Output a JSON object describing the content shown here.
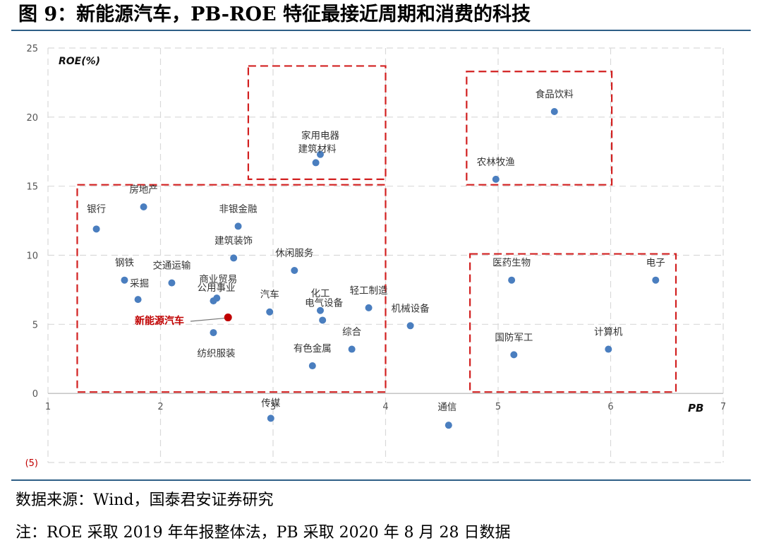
{
  "title": "图 9：新能源汽车，PB-ROE 特征最接近周期和消费的科技",
  "source": "数据来源：Wind，国泰君安证券研究",
  "note": "注：ROE 采取 2019 年年报整体法，PB 采取 2020 年 8 月 28 日数据",
  "colors": {
    "point": "#4a7ebf",
    "highlight": "#c00000",
    "box": "#d22020",
    "rule": "#2e5f86",
    "grid": "#d9d9d9"
  },
  "chart_data": {
    "type": "scatter",
    "xlabel": "PB",
    "ylabel": "ROE(%)",
    "xlim": [
      1,
      7
    ],
    "ylim": [
      -5,
      25
    ],
    "xticks": [
      "1",
      "2",
      "3",
      "4",
      "5",
      "6",
      "7"
    ],
    "yticks": [
      "(5)",
      "0",
      "5",
      "10",
      "15",
      "20",
      "25"
    ],
    "grid": true,
    "points": [
      {
        "label": "银行",
        "x": 1.43,
        "y": 11.9
      },
      {
        "label": "房地产",
        "x": 1.85,
        "y": 13.5
      },
      {
        "label": "钢铁",
        "x": 1.68,
        "y": 8.2
      },
      {
        "label": "采掘",
        "x": 1.8,
        "y": 6.8
      },
      {
        "label": "交通运输",
        "x": 2.1,
        "y": 8.0
      },
      {
        "label": "商业贸易",
        "x": 2.5,
        "y": 6.9
      },
      {
        "label": "公用事业",
        "x": 2.47,
        "y": 6.7
      },
      {
        "label": "纺织服装",
        "x": 2.47,
        "y": 4.4
      },
      {
        "label": "非银金融",
        "x": 2.69,
        "y": 12.1
      },
      {
        "label": "建筑装饰",
        "x": 2.65,
        "y": 9.8
      },
      {
        "label": "汽车",
        "x": 2.97,
        "y": 5.9
      },
      {
        "label": "休闲服务",
        "x": 3.19,
        "y": 8.9
      },
      {
        "label": "化工",
        "x": 3.42,
        "y": 6.0
      },
      {
        "label": "电气设备",
        "x": 3.44,
        "y": 5.3
      },
      {
        "label": "有色金属",
        "x": 3.35,
        "y": 2.0
      },
      {
        "label": "综合",
        "x": 3.7,
        "y": 3.2
      },
      {
        "label": "轻工制造",
        "x": 3.85,
        "y": 6.2
      },
      {
        "label": "机械设备",
        "x": 4.22,
        "y": 4.9
      },
      {
        "label": "家用电器",
        "x": 3.42,
        "y": 17.3
      },
      {
        "label": "建筑材料",
        "x": 3.38,
        "y": 16.7
      },
      {
        "label": "食品饮料",
        "x": 5.5,
        "y": 20.4
      },
      {
        "label": "农林牧渔",
        "x": 4.98,
        "y": 15.5
      },
      {
        "label": "医药生物",
        "x": 5.12,
        "y": 8.2
      },
      {
        "label": "电子",
        "x": 6.4,
        "y": 8.2
      },
      {
        "label": "国防军工",
        "x": 5.14,
        "y": 2.8
      },
      {
        "label": "计算机",
        "x": 5.98,
        "y": 3.2
      },
      {
        "label": "传媒",
        "x": 2.98,
        "y": -1.8
      },
      {
        "label": "通信",
        "x": 4.56,
        "y": -2.3
      },
      {
        "label": "新能源汽车",
        "x": 2.6,
        "y": 5.5,
        "highlight": true
      }
    ],
    "highlight_boxes": [
      {
        "x0": 1.26,
        "x1": 4.0,
        "y0": 0.1,
        "y1": 15.1
      },
      {
        "x0": 3.7,
        "x1": 4.0,
        "y0": 15.5,
        "y1": 23.7
      },
      {
        "x0": 4.72,
        "x1": 5.02,
        "y0": 15.1,
        "y1": 23.3
      },
      {
        "x0": 4.75,
        "x1": 6.58,
        "y0": 0.1,
        "y1": 10.1
      }
    ]
  }
}
